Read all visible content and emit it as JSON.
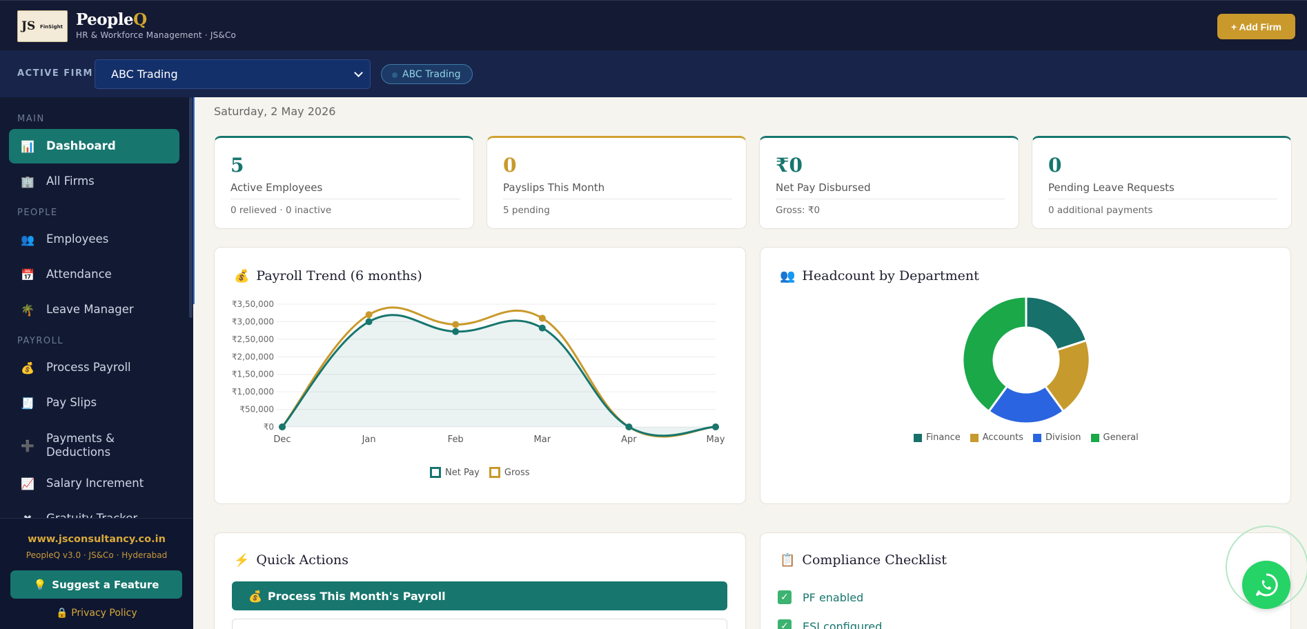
{
  "header": {
    "logo_initials": "JS",
    "logo_sub": "FinSight",
    "brand_main": "People",
    "brand_q": "Q",
    "tagline": "HR & Workforce Management · JS&Co",
    "add_firm": "+ Add Firm"
  },
  "firmbar": {
    "label": "ACTIVE FIRM",
    "selected": "ABC Trading",
    "pill": "ABC Trading"
  },
  "sidebar": {
    "sections": {
      "main": "MAIN",
      "people": "PEOPLE",
      "payroll": "PAYROLL"
    },
    "items": [
      {
        "label": "Dashboard",
        "icon": "bar-chart-icon",
        "glyph": "📊"
      },
      {
        "label": "All Firms",
        "icon": "building-icon",
        "glyph": "🏢"
      },
      {
        "label": "Employees",
        "icon": "people-icon",
        "glyph": "👥"
      },
      {
        "label": "Attendance",
        "icon": "calendar-icon",
        "glyph": "📅"
      },
      {
        "label": "Leave Manager",
        "icon": "palm-tree-icon",
        "glyph": "🌴"
      },
      {
        "label": "Process Payroll",
        "icon": "money-bag-icon",
        "glyph": "💰"
      },
      {
        "label": "Pay Slips",
        "icon": "receipt-icon",
        "glyph": "🧾"
      },
      {
        "label": "Payments & Deductions",
        "icon": "plus-icon",
        "glyph": "➕"
      },
      {
        "label": "Salary Increment",
        "icon": "trend-up-icon",
        "glyph": "📈"
      },
      {
        "label": "Gratuity Tracker",
        "icon": "chart-icon",
        "glyph": "✖"
      }
    ],
    "footer": {
      "url": "www.jsconsultancy.co.in",
      "version": "PeopleQ v3.0 · JS&Co · Hyderabad",
      "suggest": "Suggest a Feature",
      "privacy": "Privacy Policy"
    }
  },
  "main": {
    "date": "Saturday, 2 May 2026",
    "stats": [
      {
        "value": "5",
        "label": "Active Employees",
        "sub": "0 relieved · 0 inactive"
      },
      {
        "value": "0",
        "label": "Payslips This Month",
        "sub": "5 pending"
      },
      {
        "value": "₹0",
        "label": "Net Pay Disbursed",
        "sub": "Gross: ₹0"
      },
      {
        "value": "0",
        "label": "Pending Leave Requests",
        "sub": "0 additional payments"
      }
    ],
    "payroll_title": "Payroll Trend (6 months)",
    "headcount_title": "Headcount by Department",
    "quick_actions_title": "Quick Actions",
    "quick_action_primary": "Process This Month's Payroll",
    "compliance_title": "Compliance Checklist",
    "compliance_items": [
      "PF enabled",
      "ESI configured"
    ]
  },
  "chart_data": [
    {
      "type": "line",
      "title": "Payroll Trend (6 months)",
      "categories": [
        "Dec",
        "Jan",
        "Feb",
        "Mar",
        "Apr",
        "May"
      ],
      "series": [
        {
          "name": "Net Pay",
          "values": [
            0,
            300000,
            272000,
            282000,
            0,
            0
          ],
          "color": "#17766e"
        },
        {
          "name": "Gross",
          "values": [
            0,
            320000,
            292000,
            310000,
            0,
            0
          ],
          "color": "#c9992b"
        }
      ],
      "yticks": [
        "₹0",
        "₹50,000",
        "₹1,00,000",
        "₹1,50,000",
        "₹2,00,000",
        "₹2,50,000",
        "₹3,00,000",
        "₹3,50,000"
      ],
      "ylim": [
        0,
        350000
      ],
      "legend": "bottom"
    },
    {
      "type": "pie",
      "title": "Headcount by Department",
      "categories": [
        "Finance",
        "Accounts",
        "Division",
        "General"
      ],
      "values": [
        1,
        1,
        1,
        2
      ],
      "colors": [
        "#17706a",
        "#c69a2c",
        "#2a64e0",
        "#1aa849"
      ],
      "legend": "bottom"
    }
  ]
}
